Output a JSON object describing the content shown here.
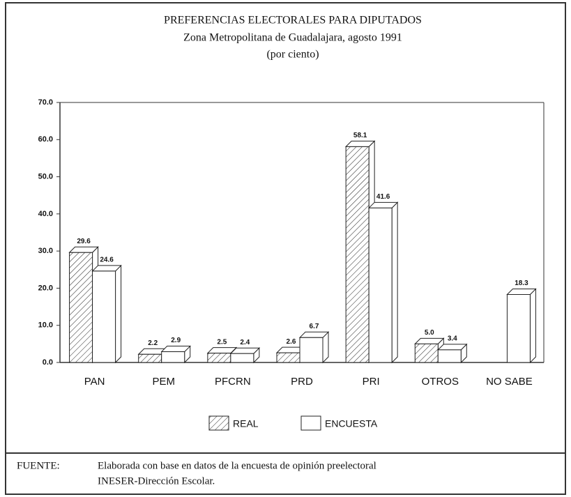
{
  "chart_data": {
    "type": "bar",
    "title": "PREFERENCIAS ELECTORALES PARA DIPUTADOS",
    "subtitle": "Zona Metropolitana de Guadalajara, agosto 1991",
    "unit_note": "(por ciento)",
    "categories": [
      "PAN",
      "PEM",
      "PFCRN",
      "PRD",
      "PRI",
      "OTROS",
      "NO SABE"
    ],
    "series": [
      {
        "name": "REAL",
        "color": "#ffffff",
        "hatch": true,
        "values": [
          29.6,
          2.2,
          2.5,
          2.6,
          58.1,
          5.0,
          null
        ],
        "value_labels": [
          "29.6",
          "2.2",
          "2.5",
          "2.6",
          "58.1",
          "5.0",
          null
        ]
      },
      {
        "name": "ENCUESTA",
        "color": "#ffffff",
        "hatch": false,
        "values": [
          24.6,
          2.9,
          2.4,
          6.7,
          41.6,
          3.4,
          18.3
        ],
        "value_labels": [
          "24.6",
          "2.9",
          "2.4",
          "6.7",
          "41.6",
          "3.4",
          "18.3"
        ]
      }
    ],
    "ylim": [
      0,
      70
    ],
    "yticks": [
      {
        "value": 0,
        "label": "0.0"
      },
      {
        "value": 10,
        "label": "10.0"
      },
      {
        "value": 20,
        "label": "20.0"
      },
      {
        "value": 30,
        "label": "30.0"
      },
      {
        "value": 40,
        "label": "40.0"
      },
      {
        "value": 50,
        "label": "50.0"
      },
      {
        "value": 60,
        "label": "60.0"
      },
      {
        "value": 70,
        "label": "70.0"
      }
    ],
    "legend": "bottom",
    "source_label": "FUENTE:",
    "source_lines": [
      "Elaborada con base en datos de la encuesta de opinión preelectoral",
      "INESER-Dirección Escolar."
    ]
  }
}
